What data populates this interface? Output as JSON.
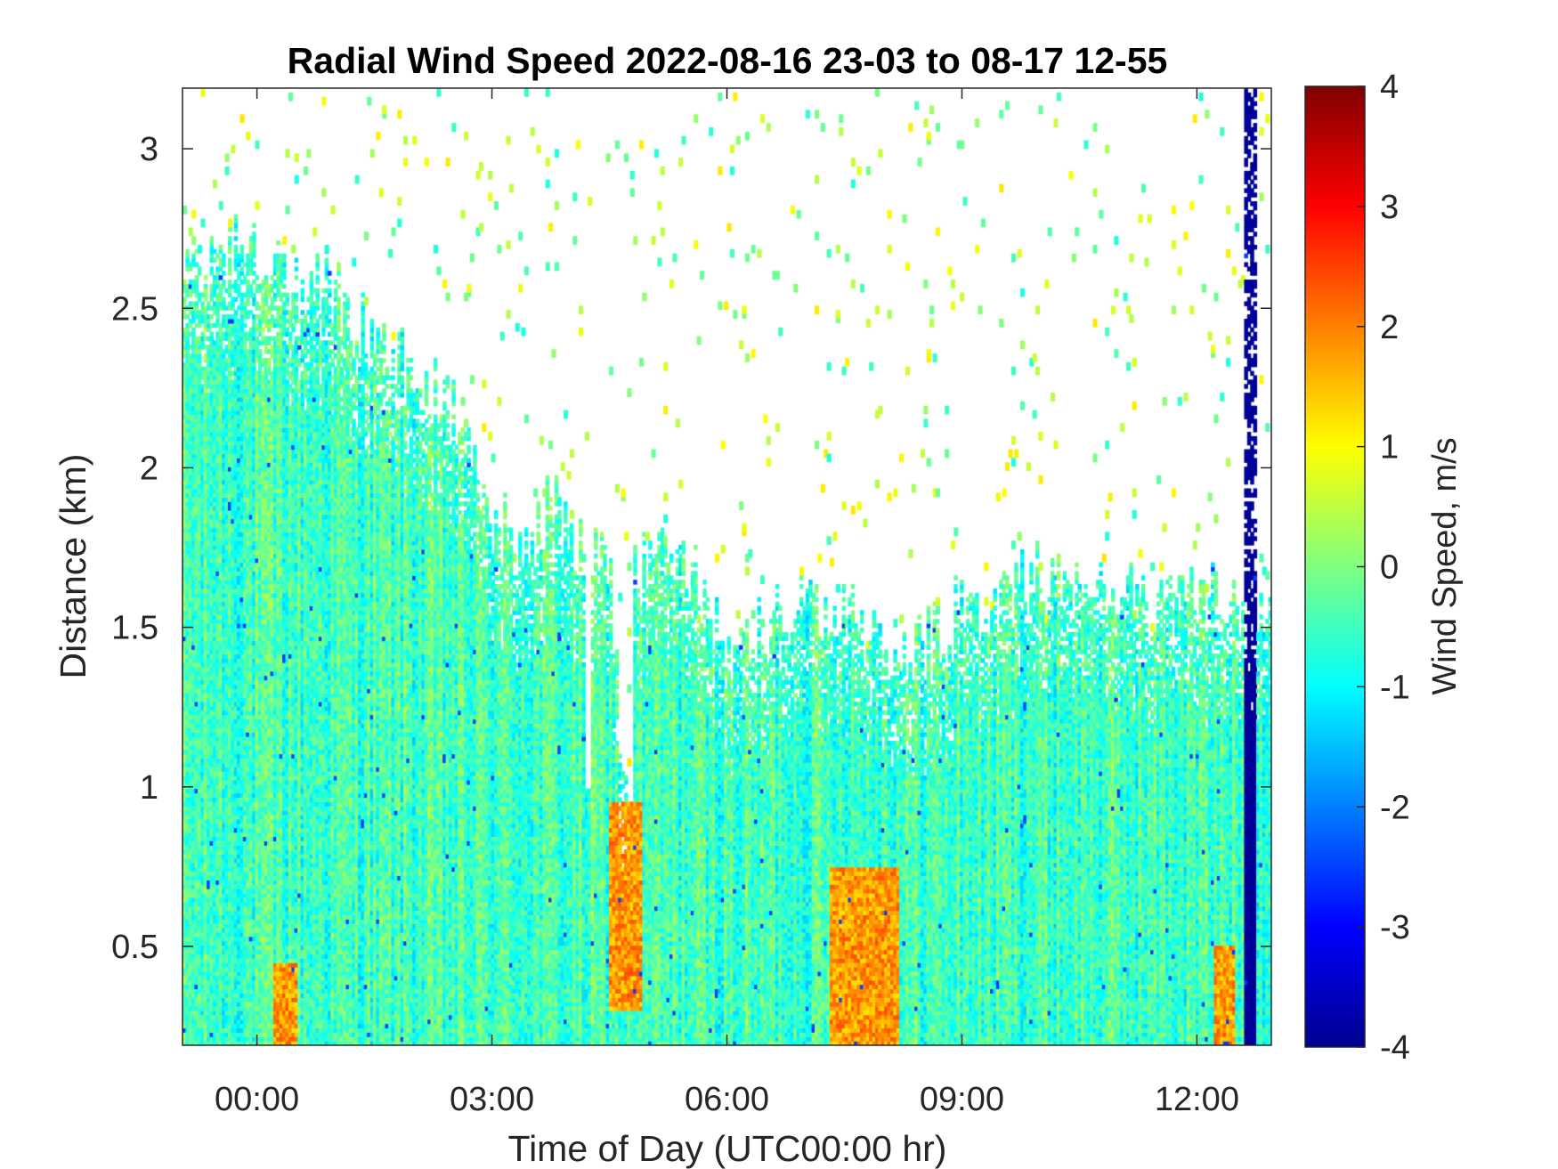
{
  "chart_data": {
    "type": "heatmap",
    "title": "Radial Wind Speed 2022-08-16 23-03 to 08-17 12-55",
    "xlabel": "Time of Day (UTC00:00 hr)",
    "ylabel": "Distance (km)",
    "xlim_hours": [
      -0.95,
      12.95
    ],
    "ylim": [
      0.19,
      3.19
    ],
    "x_ticks": [
      0,
      3,
      6,
      9,
      12
    ],
    "x_tick_labels": [
      "00:00",
      "03:00",
      "06:00",
      "09:00",
      "12:00"
    ],
    "y_ticks": [
      0.5,
      1,
      1.5,
      2,
      2.5,
      3
    ],
    "y_tick_labels": [
      "0.5",
      "1",
      "1.5",
      "2",
      "2.5",
      "3"
    ],
    "colorbar": {
      "label": "Wind Speed, m/s",
      "colormap": "jet",
      "clim": [
        -4,
        4
      ],
      "ticks": [
        -4,
        -3,
        -2,
        -1,
        0,
        1,
        2,
        3,
        4
      ],
      "tick_labels": [
        "-4",
        "-3",
        "-2",
        "-1",
        "0",
        "1",
        "2",
        "3",
        "4"
      ]
    },
    "data_coverage_top_km": [
      [
        -0.95,
        2.6
      ],
      [
        -0.5,
        2.65
      ],
      [
        0.0,
        2.7
      ],
      [
        0.5,
        2.6
      ],
      [
        1.0,
        2.55
      ],
      [
        1.5,
        2.4
      ],
      [
        2.0,
        2.3
      ],
      [
        2.5,
        2.2
      ],
      [
        3.0,
        1.85
      ],
      [
        3.5,
        1.75
      ],
      [
        3.8,
        1.9
      ],
      [
        4.0,
        1.8
      ],
      [
        4.2,
        1.7
      ],
      [
        4.5,
        1.7
      ],
      [
        4.7,
        0.95
      ],
      [
        4.8,
        1.7
      ],
      [
        5.0,
        1.7
      ],
      [
        5.5,
        1.75
      ],
      [
        6.0,
        1.4
      ],
      [
        6.5,
        1.5
      ],
      [
        7.0,
        1.6
      ],
      [
        7.5,
        1.55
      ],
      [
        8.0,
        1.45
      ],
      [
        8.5,
        1.45
      ],
      [
        9.0,
        1.55
      ],
      [
        9.5,
        1.6
      ],
      [
        10.0,
        1.65
      ],
      [
        10.5,
        1.65
      ],
      [
        11.0,
        1.6
      ],
      [
        11.5,
        1.55
      ],
      [
        12.0,
        1.6
      ],
      [
        12.5,
        1.6
      ],
      [
        12.95,
        1.55
      ]
    ],
    "data_gaps": [
      {
        "time_hours": [
          4.18,
          4.28
        ],
        "distance_top_km": 1.0
      },
      {
        "time_hours": [
          4.72,
          4.8
        ],
        "distance_top_km": 0.95
      }
    ],
    "features": [
      {
        "description": "strong negative (about -4 m/s) band",
        "time_hours": [
          12.62,
          12.76
        ],
        "distance_km": [
          0.19,
          3.19
        ]
      },
      {
        "description": "positive (1 to 2.5 m/s) near-surface cores",
        "time_hours": [
          0.2,
          0.5
        ],
        "distance_km": [
          0.19,
          0.45
        ]
      },
      {
        "description": "positive (1 to 2.5 m/s) near-surface cores",
        "time_hours": [
          7.3,
          8.2
        ],
        "distance_km": [
          0.19,
          0.75
        ]
      },
      {
        "description": "positive (1 to 2.5 m/s) near-surface cores",
        "time_hours": [
          4.5,
          4.9
        ],
        "distance_km": [
          0.3,
          0.95
        ]
      },
      {
        "description": "positive (1 to 2.5 m/s) near-surface cores",
        "time_hours": [
          12.2,
          12.5
        ],
        "distance_km": [
          0.19,
          0.5
        ]
      }
    ],
    "typical_value_range": [
      -1.5,
      0.5
    ],
    "grid": false
  }
}
